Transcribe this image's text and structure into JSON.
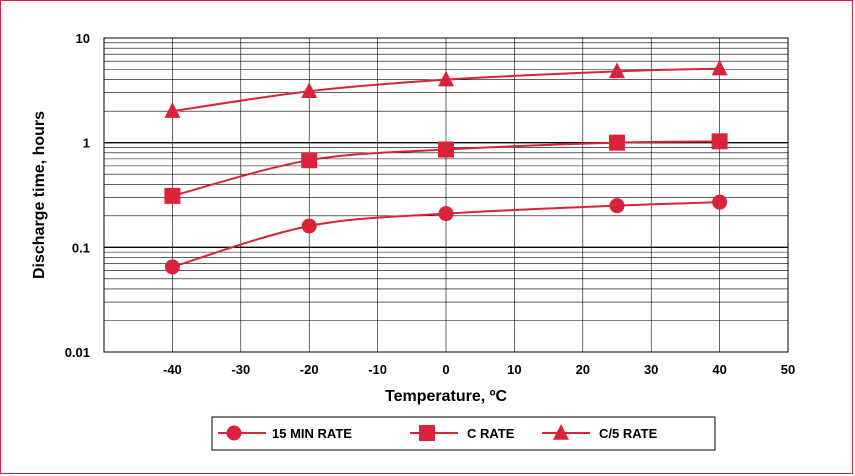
{
  "chart_data": {
    "type": "line",
    "xlabel": "Temperature, ºC",
    "ylabel": "Discharge time, hours",
    "x_ticks": [
      "-40",
      "-30",
      "-20",
      "-10",
      "0",
      "10",
      "20",
      "30",
      "40",
      "50"
    ],
    "y_ticks": [
      "10",
      "1",
      "0.1",
      "0.01"
    ],
    "xlim": [
      -50,
      50
    ],
    "ylim": [
      0.01,
      10
    ],
    "y_scale": "log",
    "grid": true,
    "legend_position": "bottom",
    "series": [
      {
        "name": "15 MIN RATE",
        "marker": "circle",
        "x": [
          -40,
          -20,
          0,
          25,
          40
        ],
        "y": [
          0.065,
          0.16,
          0.21,
          0.25,
          0.27
        ]
      },
      {
        "name": "C RATE",
        "marker": "square",
        "x": [
          -40,
          -20,
          0,
          25,
          40
        ],
        "y": [
          0.31,
          0.68,
          0.86,
          1.0,
          1.03
        ]
      },
      {
        "name": "C/5 RATE",
        "marker": "triangle",
        "x": [
          -40,
          -20,
          0,
          25,
          40
        ],
        "y": [
          2.0,
          3.1,
          4.0,
          4.8,
          5.1
        ]
      }
    ],
    "colors": {
      "series": "#d8233a",
      "grid": "#000000",
      "frame": "#d8233a"
    }
  }
}
